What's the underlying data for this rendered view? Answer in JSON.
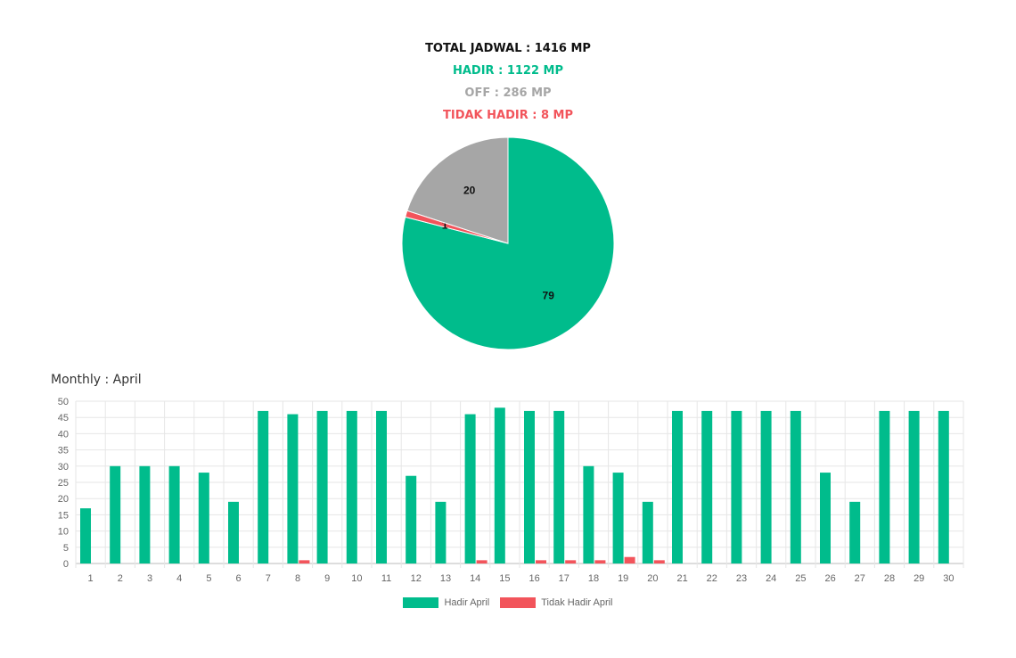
{
  "summary": {
    "total": "TOTAL JADWAL : 1416 MP",
    "hadir": "HADIR : 1122 MP",
    "off": "OFF : 286 MP",
    "tidak_hadir": "TIDAK HADIR : 8 MP"
  },
  "colors": {
    "hadir": "#00bc8c",
    "off": "#a6a6a6",
    "tidak_hadir": "#f2545b"
  },
  "chart_data": [
    {
      "type": "pie",
      "labels": [
        "",
        "",
        ""
      ],
      "values": [
        79,
        1,
        20
      ],
      "data_labels": [
        "79",
        "1",
        "20"
      ],
      "slice_colors": [
        "#00bc8c",
        "#f2545b",
        "#a6a6a6"
      ]
    },
    {
      "type": "bar",
      "title": "Monthly : April",
      "categories": [
        "1",
        "2",
        "3",
        "4",
        "5",
        "6",
        "7",
        "8",
        "9",
        "10",
        "11",
        "12",
        "13",
        "14",
        "15",
        "16",
        "17",
        "18",
        "19",
        "20",
        "21",
        "22",
        "23",
        "24",
        "25",
        "26",
        "27",
        "28",
        "29",
        "30"
      ],
      "series": [
        {
          "name": "Hadir April",
          "color": "#00bc8c",
          "values": [
            17,
            30,
            30,
            30,
            28,
            19,
            47,
            46,
            47,
            47,
            47,
            27,
            19,
            46,
            48,
            47,
            47,
            30,
            28,
            19,
            47,
            47,
            47,
            47,
            47,
            28,
            19,
            47,
            47,
            47
          ]
        },
        {
          "name": "Tidak Hadir April",
          "color": "#f2545b",
          "values": [
            0,
            0,
            0,
            0,
            0,
            0,
            0,
            1,
            0,
            0,
            0,
            0,
            0,
            1,
            0,
            1,
            1,
            1,
            2,
            1,
            0,
            0,
            0,
            0,
            0,
            0,
            0,
            0,
            0,
            0
          ]
        }
      ],
      "ylim": [
        0,
        50
      ],
      "yticks": [
        "0",
        "5",
        "10",
        "15",
        "20",
        "25",
        "30",
        "35",
        "40",
        "45",
        "50"
      ],
      "grid": true,
      "legend": "bottom"
    }
  ]
}
